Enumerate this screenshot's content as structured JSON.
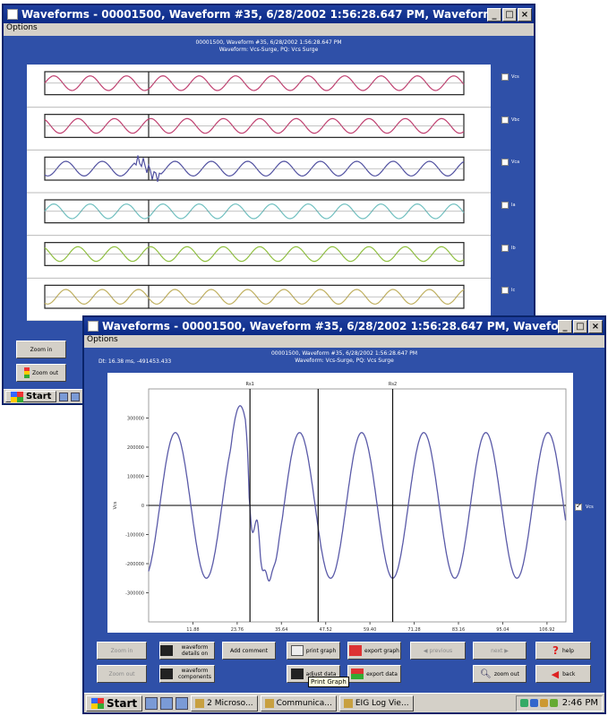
{
  "back_window": {
    "title": "Waveforms - 00001500, Waveform #35, 6/28/2002 1:56:28.647 PM, Waveform: Vcs ...",
    "menu": "Options",
    "header_line1": "00001500, Waveform #35, 6/28/2002 1:56:28.647 PM",
    "header_line2": "Waveform: Vcs-Surge, PQ: Vcs Surge",
    "channels": [
      {
        "label": "Vcs",
        "color": "#c04070"
      },
      {
        "label": "Vbc",
        "color": "#c04070"
      },
      {
        "label": "Vca",
        "color": "#5050a0"
      },
      {
        "label": "Ia",
        "color": "#70c0c0"
      },
      {
        "label": "Ib",
        "color": "#90c040"
      },
      {
        "label": "Ic",
        "color": "#c0b060"
      }
    ],
    "buttons": {
      "zoom_in": "Zoom in",
      "zoom_out": "Zoom out"
    }
  },
  "front_window": {
    "title": "Waveforms - 00001500, Waveform #35, 6/28/2002 1:56:28.647 PM, Waveform: Vcs ...",
    "menu": "Options",
    "header_line1": "00001500, Waveform #35, 6/28/2002 1:56:28.647 PM",
    "header_line2": "Waveform: Vcs-Surge, PQ: Vcs Surge",
    "info_left": "Dt: 16.38 ms, -491453.433",
    "series_label": "Vcs",
    "series_color": "#5a5aa8",
    "buttons": {
      "zoom_in": "Zoom in",
      "zoom_out": "Zoom out",
      "waveform_details": "waveform details on",
      "waveform_components": "waveform components",
      "add_comment": "Add comment",
      "print_graph": "print graph",
      "export_graph": "export graph",
      "adjust_data": "adjust data",
      "export_data": "export data",
      "previous": "previous",
      "next": "next",
      "help": "help",
      "zoom_out_full": "zoom out",
      "back": "back"
    },
    "tooltip": "Print Graph"
  },
  "taskbar": {
    "start": "Start",
    "tasks": [
      "2 Microso...",
      "Communica...",
      "EIG Log Vie..."
    ],
    "clock": "2:46 PM"
  },
  "chart_data": {
    "type": "line",
    "ylabel": "Vcs",
    "xlabel": "Milliseconds",
    "x_ticks": [
      "11.88",
      "23.76",
      "35.64",
      "47.52",
      "59.40",
      "71.28",
      "83.16",
      "95.04",
      "106.92"
    ],
    "y_ticks": [
      "300000",
      "200000",
      "100000",
      "0",
      "-100000",
      "-200000",
      "-300000"
    ],
    "ylim": [
      -400000,
      400000
    ],
    "xlim": [
      0,
      112
    ],
    "cursor_labels": [
      "Rs1",
      "Rs2"
    ],
    "series": [
      {
        "name": "Vcs",
        "amplitude": 250000,
        "period_ms": 16.67
      }
    ]
  }
}
